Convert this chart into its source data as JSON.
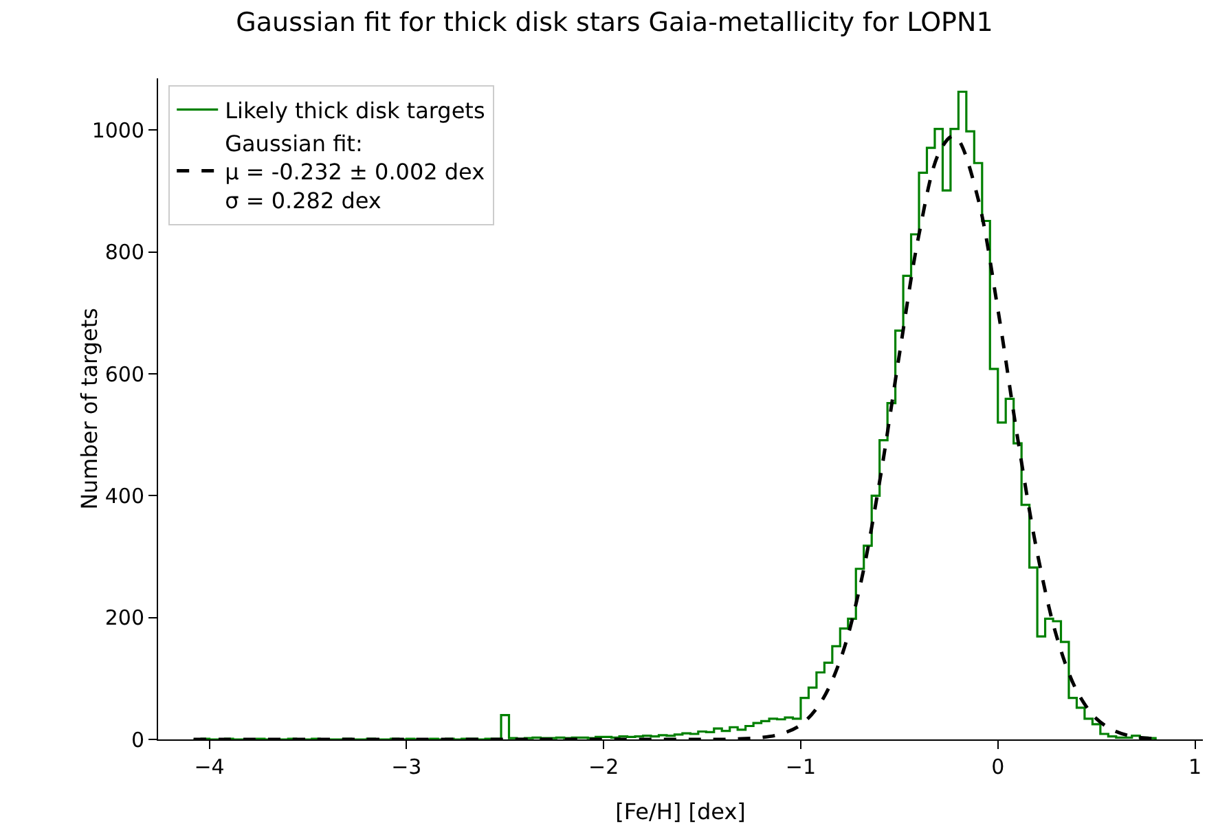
{
  "chart_data": {
    "type": "histogram",
    "title": "Gaussian fit for thick disk stars Gaia-metallicity for LOPN1",
    "xlabel": "[Fe/H] [dex]",
    "ylabel": "Number of targets",
    "bins": [
      -4.08,
      -4.04,
      -4.0,
      -3.96,
      -3.92,
      -3.88,
      -3.84,
      -3.8,
      -3.76,
      -3.72,
      -3.68,
      -3.64,
      -3.6,
      -3.56,
      -3.52,
      -3.48,
      -3.44,
      -3.4,
      -3.36,
      -3.32,
      -3.28,
      -3.24,
      -3.2,
      -3.16,
      -3.12,
      -3.08,
      -3.04,
      -3.0,
      -2.96,
      -2.92,
      -2.88,
      -2.84,
      -2.8,
      -2.76,
      -2.72,
      -2.68,
      -2.64,
      -2.6,
      -2.56,
      -2.52,
      -2.48,
      -2.44,
      -2.4,
      -2.36,
      -2.32,
      -2.28,
      -2.24,
      -2.2,
      -2.16,
      -2.12,
      -2.08,
      -2.04,
      -2.0,
      -1.96,
      -1.92,
      -1.88,
      -1.84,
      -1.8,
      -1.76,
      -1.72,
      -1.68,
      -1.64,
      -1.6,
      -1.56,
      -1.52,
      -1.48,
      -1.44,
      -1.4,
      -1.36,
      -1.32,
      -1.28,
      -1.24,
      -1.2,
      -1.16,
      -1.12,
      -1.08,
      -1.04,
      -1.0,
      -0.96,
      -0.92,
      -0.88,
      -0.84,
      -0.8,
      -0.76,
      -0.72,
      -0.68,
      -0.64,
      -0.6,
      -0.56,
      -0.52,
      -0.48,
      -0.44,
      -0.4,
      -0.36,
      -0.32,
      -0.28,
      -0.24,
      -0.2,
      -0.16,
      -0.12,
      -0.08,
      -0.04,
      0.0,
      0.04,
      0.08,
      0.12,
      0.16,
      0.2,
      0.24,
      0.28,
      0.32,
      0.36,
      0.4,
      0.44,
      0.48,
      0.52,
      0.56,
      0.6,
      0.64,
      0.68,
      0.72,
      0.76,
      0.8
    ],
    "series": [
      {
        "name": "Likely thick disk targets",
        "color": "#008000",
        "values": [
          0,
          1,
          0,
          0,
          1,
          0,
          0,
          0,
          1,
          0,
          0,
          0,
          1,
          0,
          0,
          1,
          0,
          0,
          0,
          1,
          0,
          0,
          1,
          0,
          0,
          1,
          0,
          1,
          0,
          0,
          1,
          0,
          1,
          0,
          1,
          1,
          0,
          1,
          1,
          40,
          2,
          1,
          2,
          3,
          2,
          2,
          3,
          2,
          3,
          3,
          2,
          4,
          4,
          3,
          5,
          4,
          5,
          6,
          5,
          7,
          6,
          8,
          10,
          9,
          13,
          12,
          18,
          14,
          20,
          16,
          22,
          27,
          30,
          34,
          33,
          36,
          34,
          68,
          85,
          110,
          126,
          153,
          182,
          198,
          280,
          318,
          400,
          491,
          552,
          671,
          761,
          829,
          930,
          971,
          1002,
          901,
          1002,
          1063,
          998,
          946,
          851,
          608,
          520,
          559,
          486,
          385,
          282,
          169,
          198,
          194,
          160,
          68,
          52,
          34,
          25,
          9,
          5,
          3,
          3,
          6,
          3,
          2
        ]
      },
      {
        "type": "line",
        "name": "Gaussian fit:\nμ = -0.232 ± 0.002 dex\nσ = 0.282 dex",
        "color": "#000000",
        "line_style": "dashed",
        "x": [
          -4.08,
          -3.0,
          -2.0,
          -1.5,
          -1.4,
          -1.3,
          -1.2,
          -1.1,
          -1.0,
          -0.9,
          -0.8,
          -0.7,
          -0.6,
          -0.5,
          -0.4,
          -0.3,
          -0.232,
          -0.2,
          -0.1,
          0.0,
          0.1,
          0.2,
          0.3,
          0.4,
          0.5,
          0.6,
          0.7,
          0.8
        ],
        "values": [
          0,
          0,
          0,
          0,
          0,
          1,
          3,
          9,
          24,
          60,
          130,
          250,
          423,
          631,
          829,
          962,
          990,
          984,
          887,
          706,
          495,
          306,
          167,
          80,
          34,
          13,
          4,
          1
        ]
      }
    ],
    "xlim": [
      -4.26,
      1.04
    ],
    "ylim": [
      0,
      1085
    ],
    "xticks": [
      {
        "value": -4,
        "label": "−4"
      },
      {
        "value": -3,
        "label": "−3"
      },
      {
        "value": -2,
        "label": "−2"
      },
      {
        "value": -1,
        "label": "−1"
      },
      0,
      1
    ],
    "yticks": [
      0,
      200,
      400,
      600,
      800,
      1000
    ],
    "grid": false,
    "legend": "top left"
  }
}
